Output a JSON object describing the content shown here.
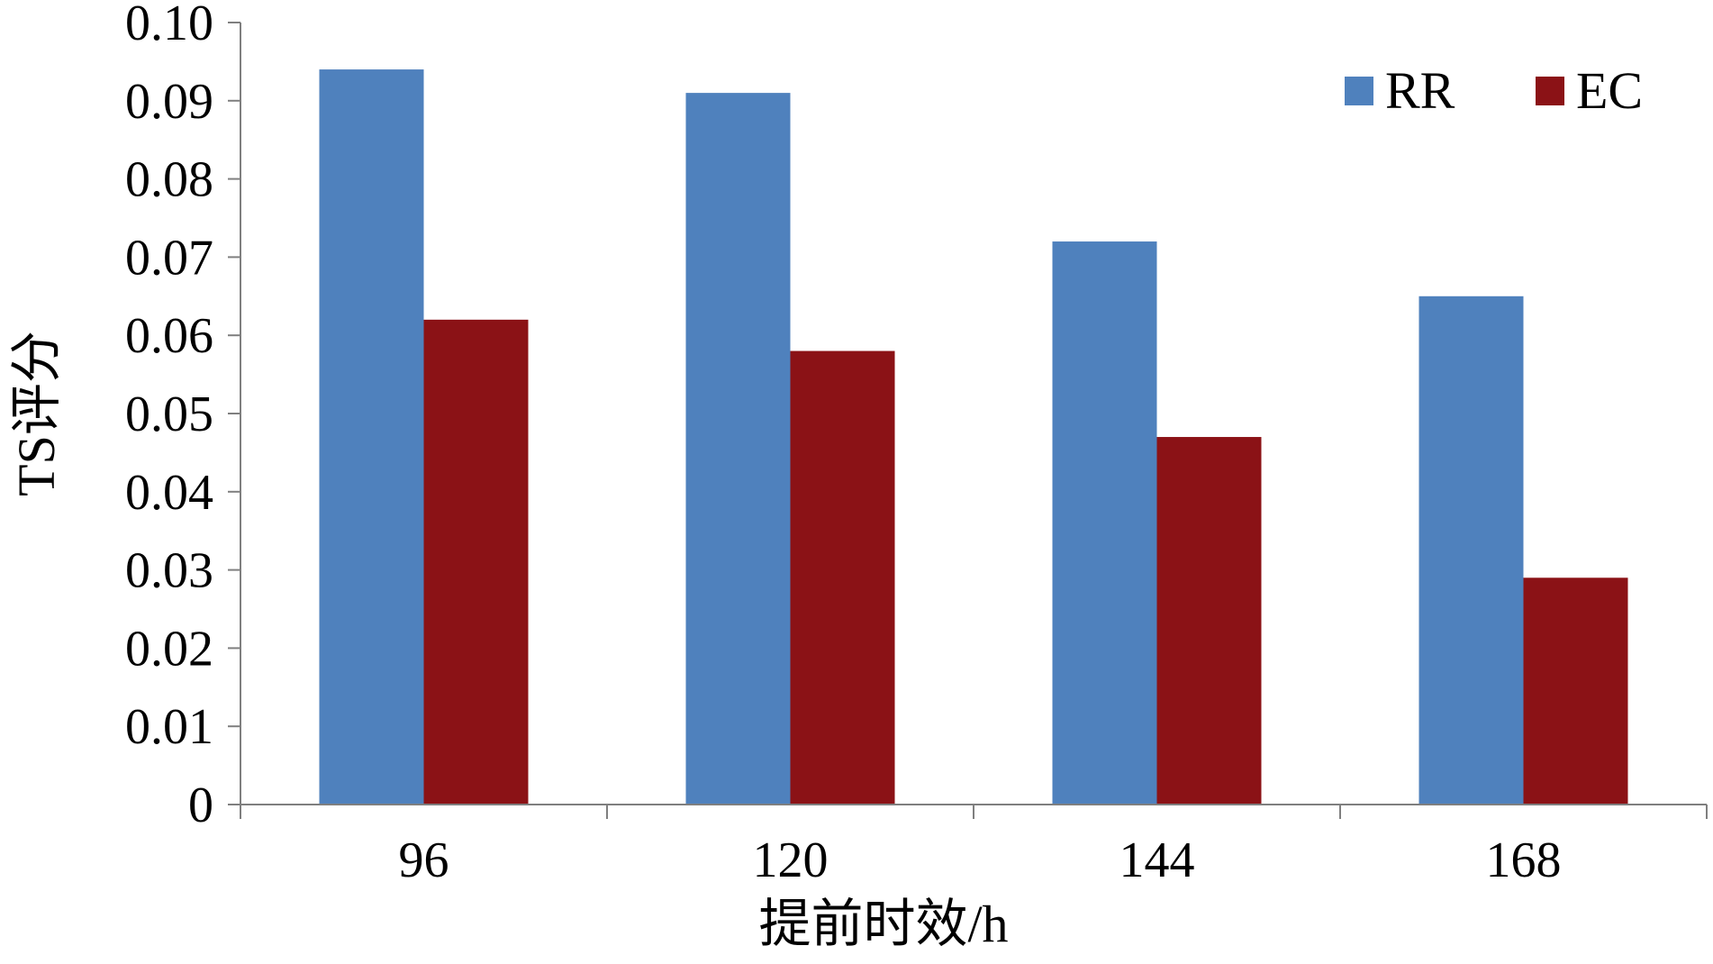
{
  "chart_data": {
    "type": "bar",
    "title": "",
    "xlabel": "提前时效/h",
    "ylabel": "TS评分",
    "categories": [
      "96",
      "120",
      "144",
      "168"
    ],
    "series": [
      {
        "name": "RR",
        "color": "#4F81BD",
        "values": [
          0.094,
          0.091,
          0.072,
          0.065
        ]
      },
      {
        "name": "EC",
        "color": "#8B1216",
        "values": [
          0.062,
          0.058,
          0.047,
          0.029
        ]
      }
    ],
    "ylim": [
      0,
      0.1
    ],
    "yticks": [
      "0",
      "0.01",
      "0.02",
      "0.03",
      "0.04",
      "0.05",
      "0.06",
      "0.07",
      "0.08",
      "0.09",
      "0.10"
    ],
    "grid": false,
    "legend_position": "top-right"
  }
}
